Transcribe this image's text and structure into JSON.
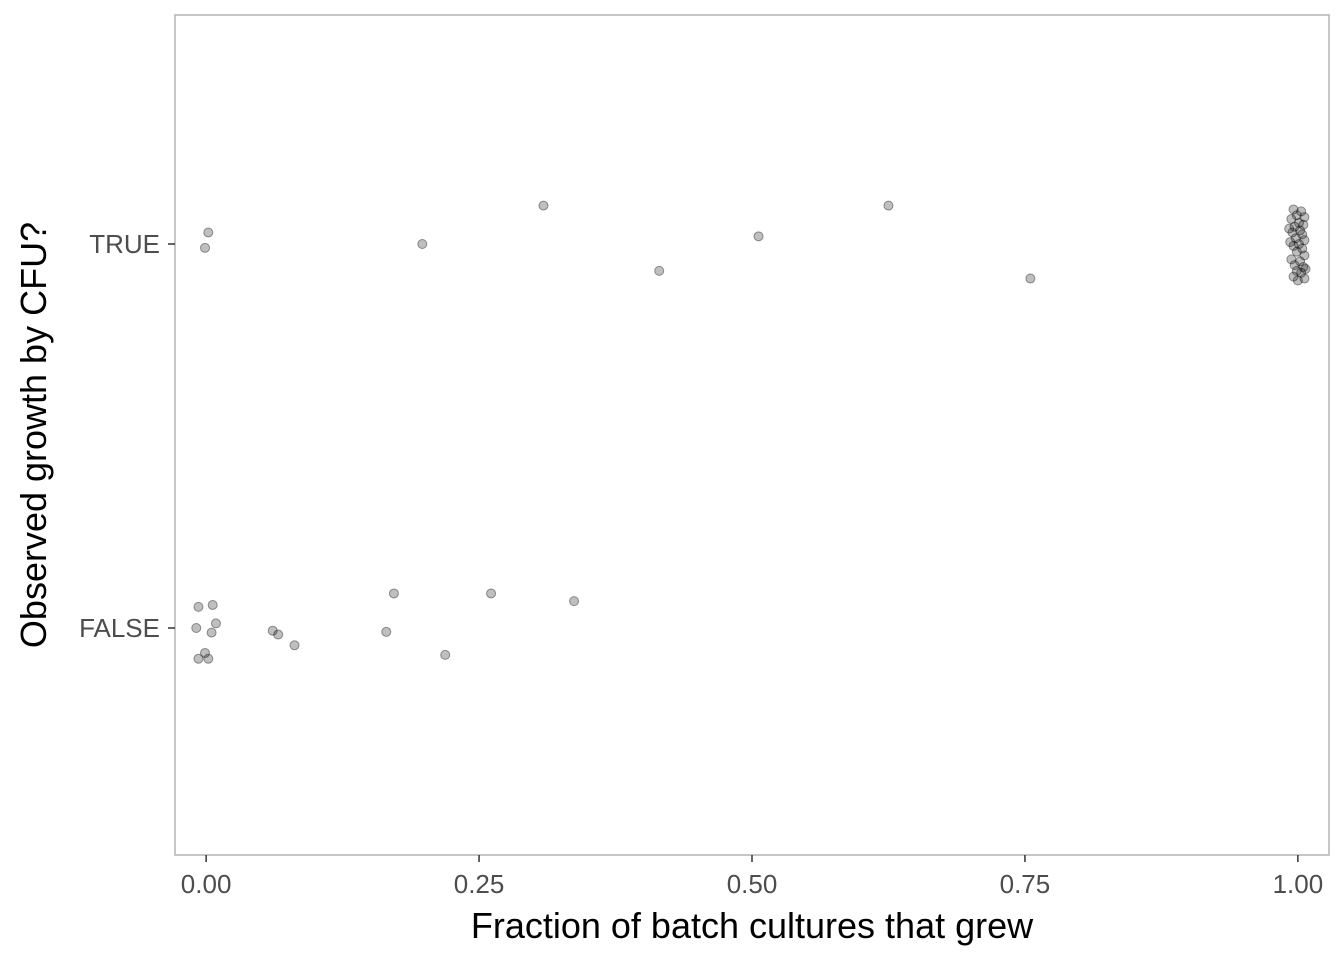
{
  "chart_data": {
    "type": "scatter",
    "title": "",
    "xlabel": "Fraction of batch cultures that grew",
    "ylabel": "Observed growth by CFU?",
    "xlim": [
      -0.0285,
      1.0285
    ],
    "x_ticks": [
      0,
      0.25,
      0.5,
      0.75,
      1
    ],
    "x_tick_labels": [
      "0.00",
      "0.25",
      "0.50",
      "0.75",
      "1.00"
    ],
    "y_categories": [
      "FALSE",
      "TRUE"
    ],
    "y_tick_labels": [
      "FALSE",
      "TRUE"
    ],
    "grid": false,
    "point_color": "#000000",
    "point_opacity": 0.25,
    "jitter": true,
    "points": [
      {
        "x": 0.002,
        "y": "TRUE",
        "jitter": 0.03
      },
      {
        "x": -0.001,
        "y": "TRUE",
        "jitter": -0.01
      },
      {
        "x": 0.198,
        "y": "TRUE",
        "jitter": 0.0
      },
      {
        "x": 0.309,
        "y": "TRUE",
        "jitter": 0.1
      },
      {
        "x": 0.415,
        "y": "TRUE",
        "jitter": -0.07
      },
      {
        "x": 0.506,
        "y": "TRUE",
        "jitter": 0.02
      },
      {
        "x": 0.625,
        "y": "TRUE",
        "jitter": 0.1
      },
      {
        "x": 0.755,
        "y": "TRUE",
        "jitter": -0.09
      },
      {
        "x": 0.996,
        "y": "TRUE",
        "jitter": 0.09
      },
      {
        "x": 1.003,
        "y": "TRUE",
        "jitter": 0.085
      },
      {
        "x": 0.999,
        "y": "TRUE",
        "jitter": 0.075
      },
      {
        "x": 1.006,
        "y": "TRUE",
        "jitter": 0.07
      },
      {
        "x": 0.994,
        "y": "TRUE",
        "jitter": 0.065
      },
      {
        "x": 1.001,
        "y": "TRUE",
        "jitter": 0.055
      },
      {
        "x": 1.005,
        "y": "TRUE",
        "jitter": 0.05
      },
      {
        "x": 0.997,
        "y": "TRUE",
        "jitter": 0.045
      },
      {
        "x": 1.002,
        "y": "TRUE",
        "jitter": 0.035
      },
      {
        "x": 0.995,
        "y": "TRUE",
        "jitter": 0.03
      },
      {
        "x": 1.004,
        "y": "TRUE",
        "jitter": 0.025
      },
      {
        "x": 0.998,
        "y": "TRUE",
        "jitter": 0.015
      },
      {
        "x": 1.006,
        "y": "TRUE",
        "jitter": 0.01
      },
      {
        "x": 0.993,
        "y": "TRUE",
        "jitter": 0.005
      },
      {
        "x": 1.001,
        "y": "TRUE",
        "jitter": 0.0
      },
      {
        "x": 0.996,
        "y": "TRUE",
        "jitter": -0.005
      },
      {
        "x": 1.004,
        "y": "TRUE",
        "jitter": -0.012
      },
      {
        "x": 0.999,
        "y": "TRUE",
        "jitter": -0.02
      },
      {
        "x": 1.006,
        "y": "TRUE",
        "jitter": -0.03
      },
      {
        "x": 0.994,
        "y": "TRUE",
        "jitter": -0.04
      },
      {
        "x": 1.002,
        "y": "TRUE",
        "jitter": -0.045
      },
      {
        "x": 0.997,
        "y": "TRUE",
        "jitter": -0.055
      },
      {
        "x": 1.005,
        "y": "TRUE",
        "jitter": -0.06
      },
      {
        "x": 0.999,
        "y": "TRUE",
        "jitter": -0.07
      },
      {
        "x": 1.003,
        "y": "TRUE",
        "jitter": -0.075
      },
      {
        "x": 0.996,
        "y": "TRUE",
        "jitter": -0.085
      },
      {
        "x": 1.006,
        "y": "TRUE",
        "jitter": -0.09
      },
      {
        "x": 1.0,
        "y": "TRUE",
        "jitter": -0.095
      },
      {
        "x": 0.992,
        "y": "TRUE",
        "jitter": 0.04
      },
      {
        "x": 1.007,
        "y": "TRUE",
        "jitter": -0.065
      },
      {
        "x": -0.007,
        "y": "FALSE",
        "jitter": 0.055
      },
      {
        "x": 0.006,
        "y": "FALSE",
        "jitter": 0.06
      },
      {
        "x": -0.009,
        "y": "FALSE",
        "jitter": 0.0
      },
      {
        "x": 0.009,
        "y": "FALSE",
        "jitter": 0.012
      },
      {
        "x": 0.005,
        "y": "FALSE",
        "jitter": -0.012
      },
      {
        "x": -0.001,
        "y": "FALSE",
        "jitter": -0.065
      },
      {
        "x": -0.007,
        "y": "FALSE",
        "jitter": -0.08
      },
      {
        "x": 0.002,
        "y": "FALSE",
        "jitter": -0.08
      },
      {
        "x": 0.061,
        "y": "FALSE",
        "jitter": -0.007
      },
      {
        "x": 0.066,
        "y": "FALSE",
        "jitter": -0.017
      },
      {
        "x": 0.081,
        "y": "FALSE",
        "jitter": -0.045
      },
      {
        "x": 0.165,
        "y": "FALSE",
        "jitter": -0.01
      },
      {
        "x": 0.172,
        "y": "FALSE",
        "jitter": 0.09
      },
      {
        "x": 0.219,
        "y": "FALSE",
        "jitter": -0.07
      },
      {
        "x": 0.261,
        "y": "FALSE",
        "jitter": 0.09
      },
      {
        "x": 0.337,
        "y": "FALSE",
        "jitter": 0.07
      }
    ]
  }
}
